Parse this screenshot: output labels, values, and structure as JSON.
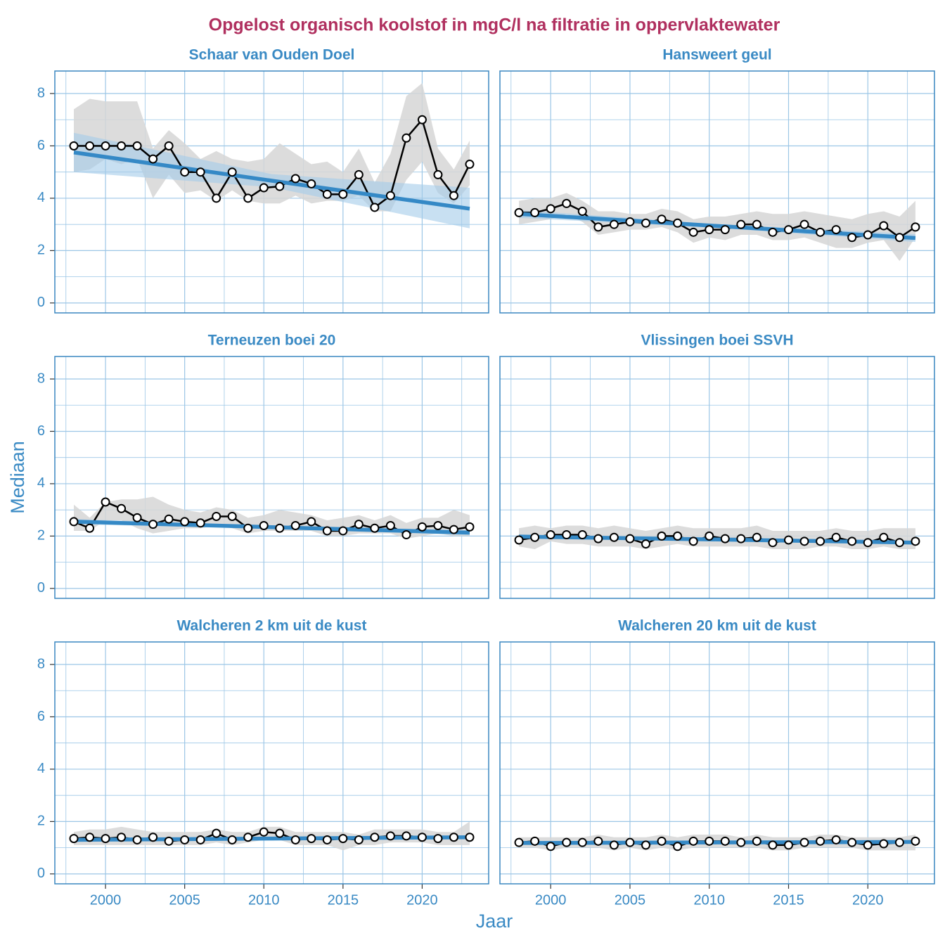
{
  "title": "Opgelost organisch koolstof in mgC/l na filtratie in oppervlaktewater",
  "xlabel": "Jaar",
  "ylabel": "Mediaan",
  "chart_data": [
    {
      "type": "line",
      "title": "Schaar van Ouden Doel",
      "x": [
        1998,
        1999,
        2000,
        2001,
        2002,
        2003,
        2004,
        2005,
        2006,
        2007,
        2008,
        2009,
        2010,
        2011,
        2012,
        2013,
        2014,
        2015,
        2016,
        2017,
        2018,
        2019,
        2020,
        2021,
        2022,
        2023
      ],
      "values": [
        6.0,
        6.0,
        6.0,
        6.0,
        6.0,
        5.5,
        6.0,
        5.0,
        5.0,
        4.0,
        5.0,
        4.0,
        4.4,
        4.45,
        4.75,
        4.55,
        4.15,
        4.15,
        4.9,
        3.65,
        4.1,
        6.3,
        7.0,
        4.9,
        4.1,
        5.3
      ],
      "upper": [
        7.4,
        7.8,
        7.7,
        7.7,
        7.7,
        5.9,
        6.6,
        6.1,
        5.5,
        5.8,
        5.5,
        5.4,
        5.5,
        6.1,
        5.7,
        5.3,
        5.4,
        5.0,
        5.9,
        4.6,
        5.7,
        7.9,
        8.4,
        5.9,
        5.1,
        6.2
      ],
      "lower": [
        5.0,
        5.1,
        5.5,
        5.3,
        5.5,
        4.0,
        4.9,
        4.2,
        4.3,
        3.9,
        4.3,
        3.9,
        3.8,
        3.8,
        4.1,
        3.8,
        3.9,
        3.9,
        4.1,
        3.5,
        3.5,
        4.7,
        5.4,
        4.2,
        3.8,
        4.5
      ],
      "trend": {
        "x": [
          1998,
          2010.5,
          2023
        ],
        "values": [
          5.75,
          4.67,
          3.6
        ],
        "lower": [
          5.0,
          4.42,
          2.85
        ],
        "upper": [
          6.5,
          4.92,
          4.4
        ]
      },
      "color": "#000000",
      "band_color": "#d6d6d6",
      "trend_color": "#3589c6",
      "trend_band_color": "#a4cbea",
      "xlim": [
        1996.8,
        2024.2
      ],
      "ylim": [
        -0.38,
        8.86
      ],
      "xticks": [
        2000,
        2005,
        2010,
        2015,
        2020
      ],
      "yticks": [
        0,
        2,
        4,
        6,
        8
      ],
      "grid": true
    },
    {
      "type": "line",
      "title": "Hansweert geul",
      "x": [
        1998,
        1999,
        2000,
        2001,
        2002,
        2003,
        2004,
        2005,
        2006,
        2007,
        2008,
        2009,
        2010,
        2011,
        2012,
        2013,
        2014,
        2015,
        2016,
        2017,
        2018,
        2019,
        2020,
        2021,
        2022,
        2023
      ],
      "values": [
        3.45,
        3.45,
        3.6,
        3.8,
        3.5,
        2.9,
        3.0,
        3.1,
        3.05,
        3.2,
        3.05,
        2.7,
        2.8,
        2.8,
        3.0,
        3.0,
        2.7,
        2.8,
        3.0,
        2.7,
        2.8,
        2.5,
        2.6,
        2.95,
        2.5,
        2.9
      ],
      "upper": [
        3.9,
        4.0,
        4.0,
        4.2,
        3.9,
        3.5,
        3.5,
        3.4,
        3.4,
        3.6,
        3.5,
        3.2,
        3.3,
        3.3,
        3.4,
        3.5,
        3.4,
        3.4,
        3.5,
        3.4,
        3.3,
        3.2,
        3.4,
        3.5,
        3.3,
        3.9
      ],
      "lower": [
        3.0,
        3.1,
        3.2,
        3.4,
        3.1,
        2.6,
        2.7,
        2.8,
        2.8,
        2.9,
        2.7,
        2.3,
        2.5,
        2.4,
        2.6,
        2.6,
        2.4,
        2.4,
        2.5,
        2.3,
        2.1,
        2.1,
        2.3,
        2.4,
        1.6,
        2.5
      ],
      "trend": {
        "x": [
          1998,
          2010.5,
          2023
        ],
        "values": [
          3.4,
          2.94,
          2.48
        ],
        "lower": [
          3.25,
          2.87,
          2.33
        ],
        "upper": [
          3.55,
          3.01,
          2.63
        ]
      },
      "color": "#000000",
      "band_color": "#d6d6d6",
      "trend_color": "#3589c6",
      "trend_band_color": "#a4cbea",
      "xlim": [
        1996.8,
        2024.2
      ],
      "ylim": [
        -0.38,
        8.86
      ],
      "xticks": [
        2000,
        2005,
        2010,
        2015,
        2020
      ],
      "yticks": [
        0,
        2,
        4,
        6,
        8
      ],
      "grid": true
    },
    {
      "type": "line",
      "title": "Terneuzen boei 20",
      "x": [
        1998,
        1999,
        2000,
        2001,
        2002,
        2003,
        2004,
        2005,
        2006,
        2007,
        2008,
        2009,
        2010,
        2011,
        2012,
        2013,
        2014,
        2015,
        2016,
        2017,
        2018,
        2019,
        2020,
        2021,
        2022,
        2023
      ],
      "values": [
        2.55,
        2.3,
        3.3,
        3.05,
        2.7,
        2.45,
        2.65,
        2.55,
        2.5,
        2.75,
        2.75,
        2.3,
        2.4,
        2.3,
        2.4,
        2.55,
        2.2,
        2.2,
        2.45,
        2.3,
        2.4,
        2.05,
        2.35,
        2.4,
        2.25,
        2.35
      ],
      "upper": [
        3.2,
        2.7,
        3.3,
        3.4,
        3.4,
        3.5,
        3.2,
        3.0,
        2.9,
        3.1,
        3.0,
        2.7,
        2.8,
        3.0,
        2.9,
        2.8,
        2.6,
        2.7,
        2.8,
        2.6,
        2.8,
        2.5,
        2.7,
        2.7,
        3.0,
        2.8
      ],
      "lower": [
        2.2,
        2.2,
        2.6,
        2.6,
        2.3,
        2.1,
        2.2,
        2.3,
        2.3,
        2.4,
        2.3,
        2.1,
        2.2,
        2.2,
        2.2,
        2.2,
        2.0,
        2.0,
        2.1,
        2.1,
        2.1,
        1.9,
        2.0,
        2.1,
        2.0,
        2.0
      ],
      "trend": {
        "x": [
          1998,
          2010.5,
          2023
        ],
        "values": [
          2.55,
          2.34,
          2.13
        ],
        "lower": [
          2.45,
          2.29,
          2.03
        ],
        "upper": [
          2.65,
          2.39,
          2.23
        ]
      },
      "color": "#000000",
      "band_color": "#d6d6d6",
      "trend_color": "#3589c6",
      "trend_band_color": "#a4cbea",
      "xlim": [
        1996.8,
        2024.2
      ],
      "ylim": [
        -0.38,
        8.86
      ],
      "xticks": [
        2000,
        2005,
        2010,
        2015,
        2020
      ],
      "yticks": [
        0,
        2,
        4,
        6,
        8
      ],
      "grid": true
    },
    {
      "type": "line",
      "title": "Vlissingen boei SSVH",
      "x": [
        1998,
        1999,
        2000,
        2001,
        2002,
        2003,
        2004,
        2005,
        2006,
        2007,
        2008,
        2009,
        2010,
        2011,
        2012,
        2013,
        2014,
        2015,
        2016,
        2017,
        2018,
        2019,
        2020,
        2021,
        2022,
        2023
      ],
      "values": [
        1.85,
        1.95,
        2.05,
        2.05,
        2.05,
        1.9,
        1.95,
        1.9,
        1.7,
        2.0,
        2.0,
        1.8,
        2.0,
        1.9,
        1.9,
        1.95,
        1.75,
        1.85,
        1.8,
        1.8,
        1.95,
        1.8,
        1.75,
        1.95,
        1.75,
        1.8
      ],
      "upper": [
        2.3,
        2.4,
        2.3,
        2.4,
        2.4,
        2.3,
        2.4,
        2.3,
        2.2,
        2.3,
        2.4,
        2.3,
        2.3,
        2.3,
        2.3,
        2.4,
        2.2,
        2.2,
        2.2,
        2.2,
        2.3,
        2.2,
        2.2,
        2.3,
        2.3,
        2.3
      ],
      "lower": [
        1.6,
        1.5,
        1.8,
        1.7,
        1.7,
        1.6,
        1.6,
        1.6,
        1.5,
        1.6,
        1.7,
        1.6,
        1.6,
        1.6,
        1.6,
        1.6,
        1.5,
        1.5,
        1.5,
        1.6,
        1.6,
        1.5,
        1.5,
        1.6,
        1.5,
        1.5
      ],
      "trend": {
        "x": [
          1998,
          2010.5,
          2023
        ],
        "values": [
          1.98,
          1.87,
          1.75
        ],
        "lower": [
          1.92,
          1.84,
          1.69
        ],
        "upper": [
          2.04,
          1.9,
          1.81
        ]
      },
      "color": "#000000",
      "band_color": "#d6d6d6",
      "trend_color": "#3589c6",
      "trend_band_color": "#a4cbea",
      "xlim": [
        1996.8,
        2024.2
      ],
      "ylim": [
        -0.38,
        8.86
      ],
      "xticks": [
        2000,
        2005,
        2010,
        2015,
        2020
      ],
      "yticks": [
        0,
        2,
        4,
        6,
        8
      ],
      "grid": true
    },
    {
      "type": "line",
      "title": "Walcheren 2 km uit de kust",
      "x": [
        1998,
        1999,
        2000,
        2001,
        2002,
        2003,
        2004,
        2005,
        2006,
        2007,
        2008,
        2009,
        2010,
        2011,
        2012,
        2013,
        2014,
        2015,
        2016,
        2017,
        2018,
        2019,
        2020,
        2021,
        2022,
        2023
      ],
      "values": [
        1.35,
        1.4,
        1.35,
        1.4,
        1.3,
        1.4,
        1.25,
        1.3,
        1.3,
        1.55,
        1.3,
        1.4,
        1.6,
        1.55,
        1.3,
        1.35,
        1.3,
        1.35,
        1.3,
        1.4,
        1.45,
        1.45,
        1.4,
        1.35,
        1.4,
        1.4
      ],
      "upper": [
        1.6,
        1.7,
        1.7,
        1.8,
        1.7,
        1.6,
        1.6,
        1.6,
        1.6,
        1.7,
        1.6,
        1.6,
        1.8,
        1.8,
        1.6,
        1.6,
        1.6,
        1.6,
        1.5,
        1.7,
        1.7,
        1.7,
        1.7,
        1.6,
        1.6,
        2.0
      ],
      "lower": [
        1.1,
        1.1,
        1.1,
        1.1,
        1.1,
        1.1,
        1.1,
        1.1,
        1.1,
        1.2,
        1.1,
        1.2,
        1.3,
        1.3,
        1.1,
        1.1,
        1.1,
        0.9,
        1.1,
        1.1,
        1.2,
        1.2,
        1.2,
        1.1,
        1.1,
        1.1
      ],
      "trend": {
        "x": [
          1998,
          2010.5,
          2023
        ],
        "values": [
          1.3,
          1.35,
          1.4
        ],
        "lower": [
          1.25,
          1.33,
          1.35
        ],
        "upper": [
          1.35,
          1.37,
          1.45
        ]
      },
      "color": "#000000",
      "band_color": "#d6d6d6",
      "trend_color": "#3589c6",
      "trend_band_color": "#a4cbea",
      "xlim": [
        1996.8,
        2024.2
      ],
      "ylim": [
        -0.38,
        8.86
      ],
      "xticks": [
        2000,
        2005,
        2010,
        2015,
        2020
      ],
      "yticks": [
        0,
        2,
        4,
        6,
        8
      ],
      "grid": true
    },
    {
      "type": "line",
      "title": "Walcheren 20 km uit de kust",
      "x": [
        1998,
        1999,
        2000,
        2001,
        2002,
        2003,
        2004,
        2005,
        2006,
        2007,
        2008,
        2009,
        2010,
        2011,
        2012,
        2013,
        2014,
        2015,
        2016,
        2017,
        2018,
        2019,
        2020,
        2021,
        2022,
        2023
      ],
      "values": [
        1.2,
        1.25,
        1.05,
        1.2,
        1.2,
        1.25,
        1.1,
        1.2,
        1.1,
        1.25,
        1.05,
        1.25,
        1.25,
        1.25,
        1.2,
        1.25,
        1.1,
        1.1,
        1.2,
        1.25,
        1.3,
        1.2,
        1.1,
        1.15,
        1.2,
        1.25
      ],
      "upper": [
        1.4,
        1.4,
        1.4,
        1.4,
        1.4,
        1.5,
        1.4,
        1.4,
        1.4,
        1.5,
        1.4,
        1.5,
        1.5,
        1.5,
        1.4,
        1.5,
        1.4,
        1.4,
        1.4,
        1.5,
        1.5,
        1.4,
        1.4,
        1.4,
        1.4,
        1.5
      ],
      "lower": [
        1.0,
        1.0,
        0.9,
        1.0,
        1.0,
        1.0,
        0.9,
        1.0,
        0.9,
        1.0,
        0.9,
        1.0,
        1.0,
        1.0,
        1.0,
        1.0,
        0.9,
        0.9,
        1.0,
        1.0,
        1.0,
        1.0,
        0.9,
        0.9,
        0.9,
        0.9
      ],
      "trend": {
        "x": [
          1998,
          2010.5,
          2023
        ],
        "values": [
          1.18,
          1.2,
          1.22
        ],
        "lower": [
          1.14,
          1.18,
          1.18
        ],
        "upper": [
          1.22,
          1.22,
          1.26
        ]
      },
      "color": "#000000",
      "band_color": "#d6d6d6",
      "trend_color": "#3589c6",
      "trend_band_color": "#a4cbea",
      "xlim": [
        1996.8,
        2024.2
      ],
      "ylim": [
        -0.38,
        8.86
      ],
      "xticks": [
        2000,
        2005,
        2010,
        2015,
        2020
      ],
      "yticks": [
        0,
        2,
        4,
        6,
        8
      ],
      "grid": true
    }
  ]
}
